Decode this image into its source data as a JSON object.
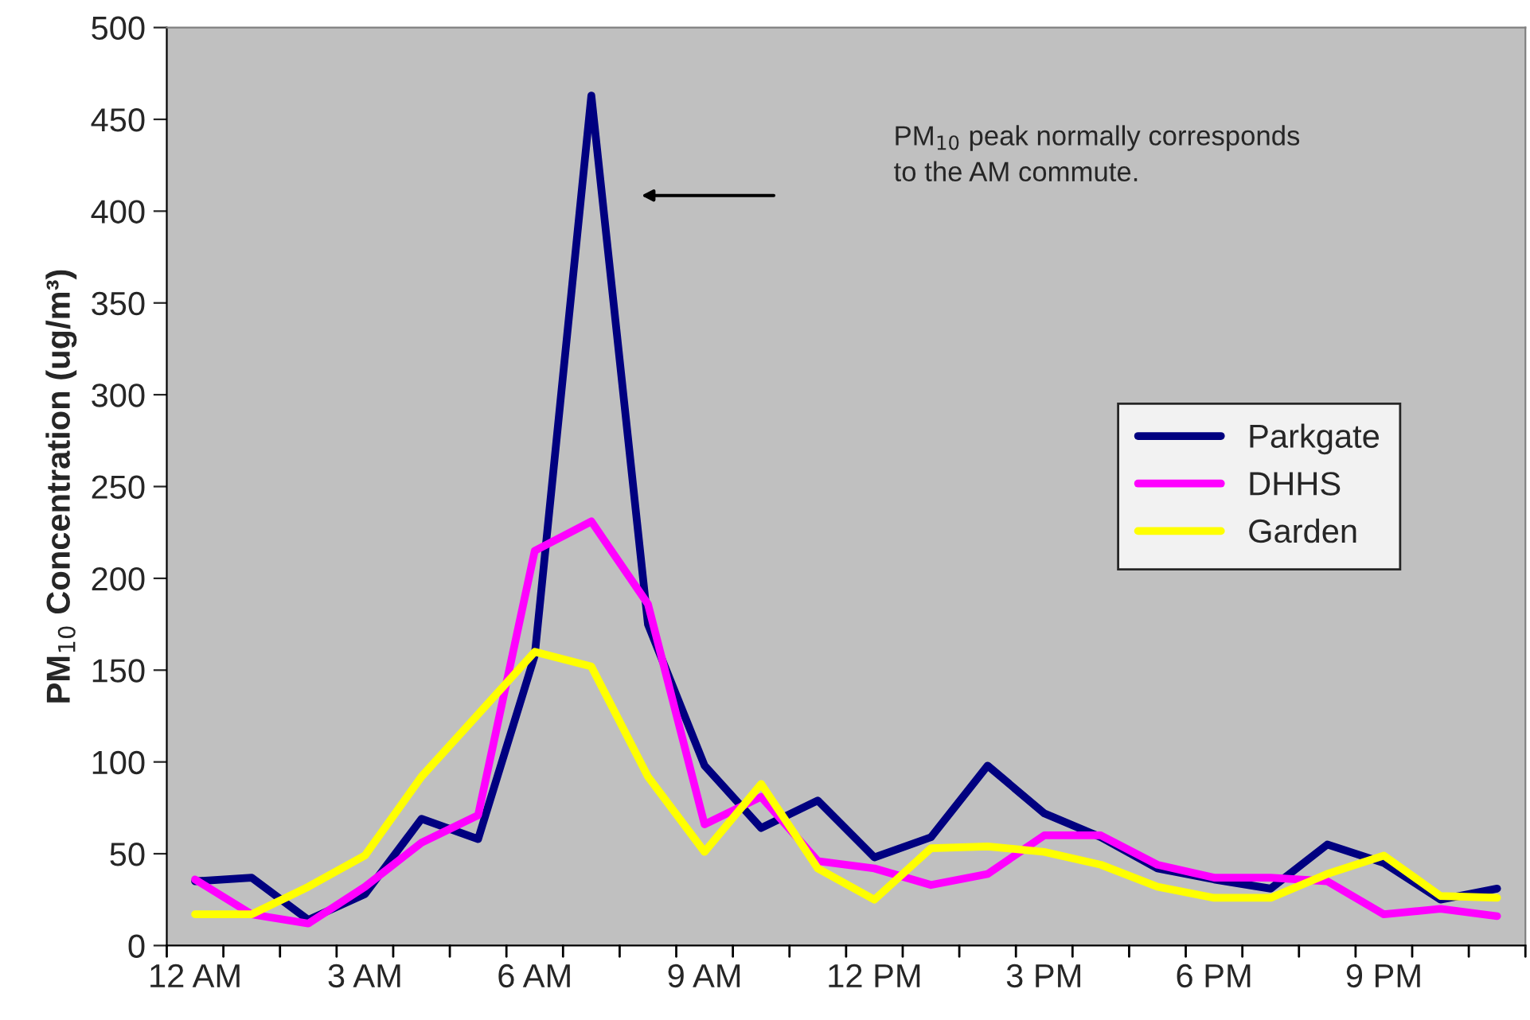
{
  "chart_data": {
    "type": "line",
    "ylabel": "PM$_{10}$ Concentration (ug/m³)",
    "categories": [
      "12 AM",
      null,
      null,
      "3 AM",
      null,
      null,
      "6 AM",
      null,
      null,
      "9 AM",
      null,
      null,
      "12 PM",
      null,
      null,
      "3 PM",
      null,
      null,
      "6 PM",
      null,
      null,
      "9 PM",
      null,
      null
    ],
    "series": [
      {
        "name": "Parkgate",
        "color": "#000080",
        "values": [
          35,
          37,
          14,
          28,
          69,
          58,
          158,
          463,
          175,
          98,
          64,
          79,
          48,
          59,
          98,
          72,
          59,
          42,
          36,
          31,
          55,
          45,
          25,
          31
        ]
      },
      {
        "name": "DHHS",
        "color": "#ff00ff",
        "values": [
          36,
          17,
          12,
          32,
          56,
          71,
          215,
          231,
          186,
          66,
          81,
          46,
          42,
          33,
          39,
          60,
          60,
          44,
          37,
          37,
          35,
          17,
          20,
          16
        ]
      },
      {
        "name": "Garden",
        "color": "#ffff00",
        "values": [
          17,
          17,
          32,
          49,
          92,
          126,
          160,
          152,
          92,
          51,
          88,
          42,
          25,
          53,
          54,
          51,
          44,
          32,
          26,
          26,
          39,
          49,
          27,
          26
        ]
      }
    ],
    "ylim": [
      0,
      500
    ],
    "yticks": [
      0,
      50,
      100,
      150,
      200,
      250,
      300,
      350,
      400,
      450,
      500
    ],
    "grid": false,
    "legend": "right",
    "marker": "none",
    "line_style": "solid",
    "annotations": [
      "PM$_{10}$ peak normally corresponds\nto the AM commute."
    ]
  }
}
